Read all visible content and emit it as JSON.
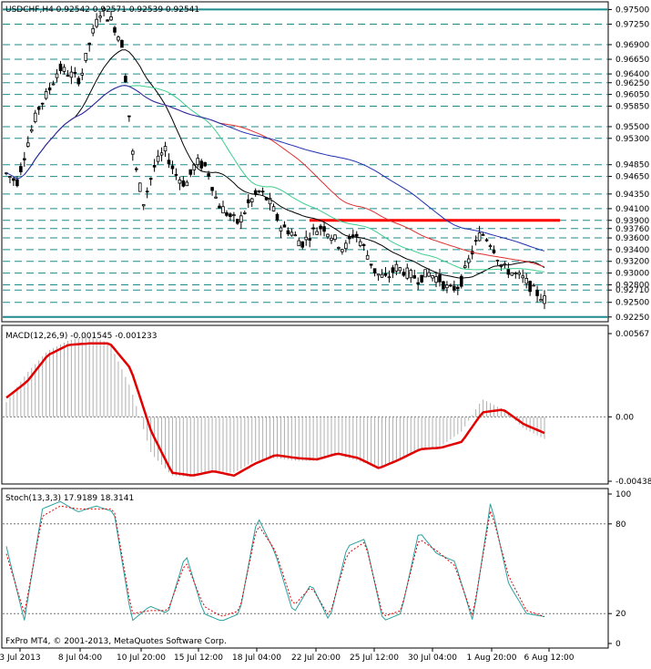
{
  "header": {
    "symbol_line": "USDCHF,H4  0.92542  0.92571  0.92539  0.92541"
  },
  "colors": {
    "background": "#ffffff",
    "grid": "#1e8a8a",
    "candle": "#000000",
    "ma_fast": "#000000",
    "ma_mid": "#3ccf8f",
    "ma_slow_red": "#e03030",
    "ma_slow_blue": "#2030b0",
    "resistance": "#ff0000",
    "macd_signal": "#e00000",
    "macd_hist": "#b0b0b0",
    "stoch_main": "#2aa0a0",
    "stoch_signal": "#e00000"
  },
  "chart_data": [
    {
      "type": "candlestick",
      "title": "USDCHF,H4",
      "ohlc_header": {
        "open": "0.92542",
        "high": "0.92571",
        "low": "0.92539",
        "close": "0.92541"
      },
      "y_levels": [
        "0.97500",
        "0.97250",
        "0.96900",
        "0.96650",
        "0.96400",
        "0.96250",
        "0.96050",
        "0.95850",
        "0.95500",
        "0.95300",
        "0.94850",
        "0.94650",
        "0.94350",
        "0.94100",
        "0.93900",
        "0.93760",
        "0.93600",
        "0.93400",
        "0.93200",
        "0.93000",
        "0.92800",
        "0.92710",
        "0.92500",
        "0.92250"
      ],
      "ylim": [
        0.922,
        0.976
      ],
      "resistance_level": 0.939,
      "price_path": [
        0.947,
        0.9455,
        0.952,
        0.958,
        0.961,
        0.965,
        0.964,
        0.963,
        0.97,
        0.975,
        0.973,
        0.969,
        0.95,
        0.942,
        0.948,
        0.951,
        0.947,
        0.945,
        0.949,
        0.948,
        0.942,
        0.94,
        0.9385,
        0.942,
        0.944,
        0.942,
        0.938,
        0.937,
        0.935,
        0.937,
        0.938,
        0.936,
        0.934,
        0.937,
        0.934,
        0.93,
        0.929,
        0.931,
        0.93,
        0.929,
        0.93,
        0.929,
        0.927,
        0.928,
        0.933,
        0.937,
        0.935,
        0.931,
        0.93,
        0.929,
        0.927,
        0.9255
      ]
    },
    {
      "type": "line",
      "title": "MACD(12,26,9) -0.001545 -0.001233",
      "y_tick_labels": [
        "0.00567",
        "0.00",
        "-0.004385"
      ],
      "ylim": [
        -0.004385,
        0.00567
      ],
      "zero_line": 0.0,
      "signal": [
        0.0013,
        0.0024,
        0.0042,
        0.0049,
        0.005,
        0.005,
        0.0033,
        -0.001,
        -0.0038,
        -0.004,
        -0.0037,
        -0.004,
        -0.0032,
        -0.0026,
        -0.0028,
        -0.0029,
        -0.0025,
        -0.0028,
        -0.0035,
        -0.0029,
        -0.0022,
        -0.0021,
        -0.0017,
        0.0003,
        0.0005,
        -0.0005,
        -0.0011
      ],
      "histogram": [
        0.001,
        0.003,
        0.0045,
        0.0052,
        0.0055,
        0.005,
        0.002,
        -0.0025,
        -0.004,
        -0.0041,
        -0.0038,
        -0.0038,
        -0.003,
        -0.0028,
        -0.003,
        -0.003,
        -0.0026,
        -0.003,
        -0.0035,
        -0.003,
        -0.0023,
        -0.002,
        -0.001,
        0.0012,
        0.0005,
        -0.0008,
        -0.0015
      ]
    },
    {
      "type": "line",
      "title": "Stoch(13,3,3) 17.9189 18.3141",
      "y_tick_labels": [
        "100",
        "80",
        "20",
        "0"
      ],
      "ylim": [
        0,
        100
      ],
      "levels": [
        80,
        20
      ],
      "main": [
        65,
        15,
        90,
        95,
        88,
        92,
        88,
        15,
        25,
        20,
        60,
        20,
        15,
        20,
        85,
        60,
        20,
        40,
        15,
        65,
        70,
        15,
        20,
        75,
        60,
        55,
        15,
        95,
        40,
        20,
        18
      ],
      "signal": [
        60,
        20,
        85,
        92,
        90,
        90,
        90,
        20,
        22,
        22,
        55,
        25,
        18,
        22,
        80,
        62,
        25,
        38,
        18,
        60,
        68,
        18,
        22,
        70,
        62,
        52,
        18,
        90,
        45,
        22,
        18
      ]
    }
  ],
  "x_axis": {
    "labels": [
      "3 Jul 2013",
      "8 Jul 04:00",
      "10 Jul 20:00",
      "15 Jul 12:00",
      "18 Jul 04:00",
      "22 Jul 20:00",
      "25 Jul 12:00",
      "30 Jul 04:00",
      "1 Aug 20:00",
      "6 Aug 12:00"
    ]
  },
  "footer": {
    "copyright": "FxPro MT4, © 2001-2013, MetaQuotes Software Corp."
  }
}
